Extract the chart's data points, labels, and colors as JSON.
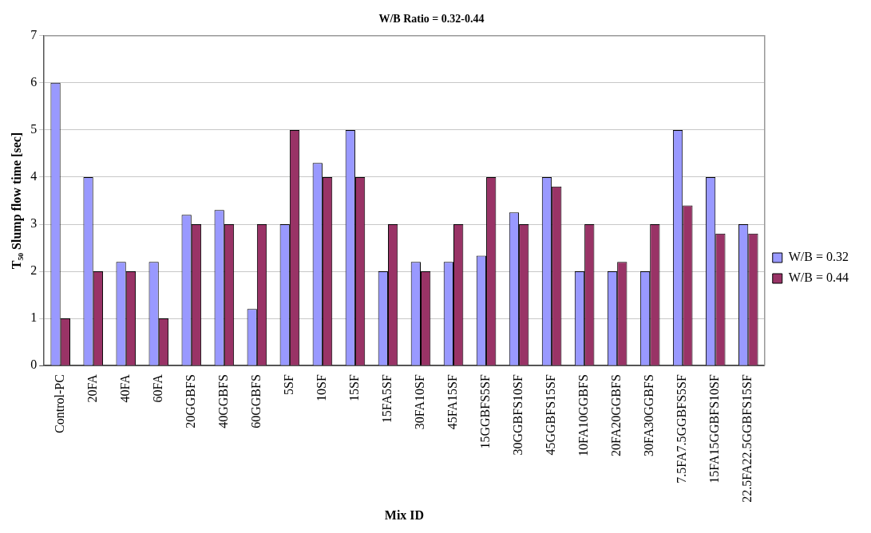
{
  "chart_data": {
    "type": "bar",
    "title": "W/B Ratio = 0.32-0.44",
    "xlabel": "Mix ID",
    "ylabel": "T₅₀ Slump flow time [sec]",
    "categories": [
      "Control-PC",
      "20FA",
      "40FA",
      "60FA",
      "20GGBFS",
      "40GGBFS",
      "60GGBFS",
      "5SF",
      "10SF",
      "15SF",
      "15FA5SF",
      "30FA10SF",
      "45FA15SF",
      "15GGBFS5SF",
      "30GGBFS10SF",
      "45GGBFS15SF",
      "10FA10GGBFS",
      "20FA20GGBFS",
      "30FA30GGBFS",
      "7.5FA7.5GGBFS5SF",
      "15FA15GGBFS10SF",
      "22.5FA22.5GGBFS15SF"
    ],
    "series": [
      {
        "name": "W/B = 0.32",
        "color": "#9999ff",
        "values": [
          6,
          4,
          2.2,
          2.2,
          3.2,
          3.3,
          1.2,
          3,
          4.3,
          5,
          2,
          2.2,
          2.2,
          2.33,
          3.25,
          4,
          2,
          2,
          2,
          5,
          4,
          3
        ]
      },
      {
        "name": "W/B = 0.44",
        "color": "#993366",
        "values": [
          1,
          2,
          2,
          1,
          3,
          3,
          3,
          5,
          4,
          4,
          3,
          2,
          3,
          4,
          3,
          3.8,
          3,
          2.2,
          3,
          3.4,
          2.8,
          2.8
        ]
      }
    ],
    "ylim": [
      0,
      7
    ],
    "yticks": [
      0,
      1,
      2,
      3,
      4,
      5,
      6,
      7
    ],
    "grid": "y",
    "legend": "right"
  }
}
